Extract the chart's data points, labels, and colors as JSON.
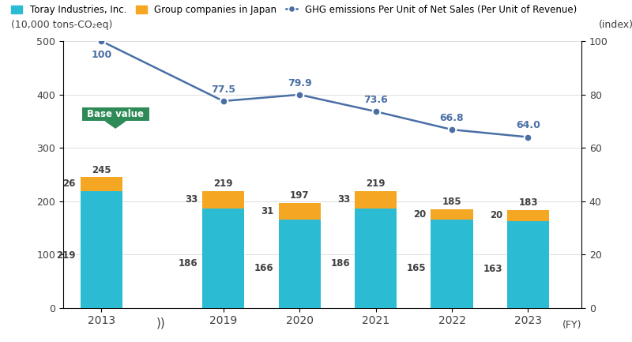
{
  "years": [
    2013,
    2019,
    2020,
    2021,
    2022,
    2023
  ],
  "toray_values": [
    219,
    186,
    166,
    186,
    165,
    163
  ],
  "group_values": [
    26,
    33,
    31,
    33,
    20,
    20
  ],
  "total_values": [
    245,
    219,
    197,
    219,
    185,
    183
  ],
  "ghg_index": [
    100,
    77.5,
    79.9,
    73.6,
    66.8,
    64.0
  ],
  "toray_color": "#2bbcd4",
  "group_color": "#f5a623",
  "line_color": "#4a6fa5",
  "bar_width": 0.55,
  "ylim_left": [
    0,
    500
  ],
  "ylim_right": [
    0,
    100
  ],
  "ylabel_left": "(10,000 tons-CO₂eq)",
  "ylabel_right": "(index)",
  "xlabel": "(FY)",
  "legend_labels": [
    "Toray Industries, Inc.",
    "Group companies in Japan",
    "GHG emissions Per Unit of Net Sales (Per Unit of Revenue)"
  ],
  "base_value_label": "Base value",
  "base_value_color": "#2e8b57",
  "axis_label_color": "#404040",
  "annotation_color_bar": "#404040",
  "annotation_color_line": "#4a6fa5",
  "x_positions": [
    0,
    1.6,
    2.6,
    3.6,
    4.6,
    5.6
  ],
  "xlim": [
    -0.5,
    6.3
  ],
  "break_x": 0.78
}
